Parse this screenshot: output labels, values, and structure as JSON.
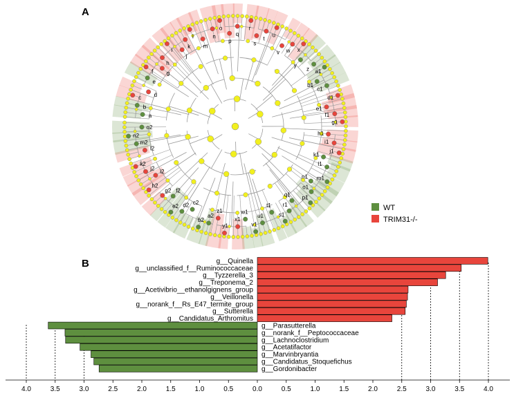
{
  "panels": {
    "a_label": "A",
    "b_label": "B"
  },
  "legend": {
    "items": [
      {
        "label": "WT",
        "color": "#5e8f3f"
      },
      {
        "label": "TRIM31-/-",
        "color": "#e8453c"
      }
    ]
  },
  "cladogram": {
    "node_color": "#f2f01e",
    "wt_color": "#5e8f3f",
    "ko_color": "#e8453c",
    "clade_labels": [
      {
        "text": "a",
        "group": "WT"
      },
      {
        "text": "b",
        "group": "WT"
      },
      {
        "text": "c",
        "group": "KO"
      },
      {
        "text": "d",
        "group": "KO"
      },
      {
        "text": "e",
        "group": "WT"
      },
      {
        "text": "f",
        "group": "KO"
      },
      {
        "text": "g",
        "group": "KO"
      },
      {
        "text": "h",
        "group": "KO"
      },
      {
        "text": "i",
        "group": "KO"
      },
      {
        "text": "j",
        "group": "KO"
      },
      {
        "text": "k",
        "group": "KO"
      },
      {
        "text": "l",
        "group": "KO"
      },
      {
        "text": "m",
        "group": "KO"
      },
      {
        "text": "n",
        "group": "KO"
      },
      {
        "text": "o",
        "group": "KO"
      },
      {
        "text": "p",
        "group": "KO"
      },
      {
        "text": "q",
        "group": "KO"
      },
      {
        "text": "r",
        "group": "KO"
      },
      {
        "text": "s",
        "group": "KO"
      },
      {
        "text": "t",
        "group": "KO"
      },
      {
        "text": "u",
        "group": "KO"
      },
      {
        "text": "v",
        "group": "KO"
      },
      {
        "text": "w",
        "group": "KO"
      },
      {
        "text": "x",
        "group": "KO"
      },
      {
        "text": "y",
        "group": "WT"
      },
      {
        "text": "z",
        "group": "WT"
      },
      {
        "text": "a1",
        "group": "WT"
      },
      {
        "text": "b1",
        "group": "WT"
      },
      {
        "text": "c1",
        "group": "WT"
      },
      {
        "text": "d1",
        "group": "KO"
      },
      {
        "text": "e1",
        "group": "KO"
      },
      {
        "text": "f1",
        "group": "KO"
      },
      {
        "text": "g1",
        "group": "KO"
      },
      {
        "text": "h1",
        "group": "KO"
      },
      {
        "text": "i1",
        "group": "KO"
      },
      {
        "text": "j1",
        "group": "KO"
      },
      {
        "text": "k1",
        "group": "WT"
      },
      {
        "text": "l1",
        "group": "WT"
      },
      {
        "text": "m1",
        "group": "WT"
      },
      {
        "text": "n1",
        "group": "WT"
      },
      {
        "text": "o1",
        "group": "WT"
      },
      {
        "text": "p1",
        "group": "WT"
      },
      {
        "text": "q1",
        "group": "WT"
      },
      {
        "text": "r1",
        "group": "WT"
      },
      {
        "text": "s1",
        "group": "WT"
      },
      {
        "text": "t1",
        "group": "WT"
      },
      {
        "text": "u1",
        "group": "WT"
      },
      {
        "text": "v1",
        "group": "WT"
      },
      {
        "text": "w1",
        "group": "WT"
      },
      {
        "text": "x1",
        "group": "KO"
      },
      {
        "text": "y1",
        "group": "KO"
      },
      {
        "text": "z1",
        "group": "KO"
      },
      {
        "text": "a2",
        "group": "WT"
      },
      {
        "text": "b2",
        "group": "WT"
      },
      {
        "text": "c2",
        "group": "WT"
      },
      {
        "text": "d2",
        "group": "WT"
      },
      {
        "text": "e2",
        "group": "WT"
      },
      {
        "text": "f2",
        "group": "WT"
      },
      {
        "text": "g2",
        "group": "KO"
      },
      {
        "text": "h2",
        "group": "KO"
      },
      {
        "text": "i2",
        "group": "KO"
      },
      {
        "text": "j2",
        "group": "KO"
      },
      {
        "text": "k2",
        "group": "KO"
      },
      {
        "text": "l2",
        "group": "KO"
      },
      {
        "text": "m2",
        "group": "WT"
      },
      {
        "text": "n2",
        "group": "WT"
      },
      {
        "text": "o2",
        "group": "WT"
      }
    ]
  },
  "chart_data": {
    "type": "bar",
    "title": "",
    "orientation": "horizontal",
    "xlabel": "",
    "ylabel": "",
    "xlim": [
      -4.0,
      4.0
    ],
    "x_ticks": [
      "4.0",
      "3.5",
      "3.0",
      "2.5",
      "2.0",
      "1.5",
      "1.0",
      "0.5",
      "0.0",
      "0.5",
      "1.0",
      "1.5",
      "2.0",
      "2.5",
      "3.0",
      "3.5",
      "4.0"
    ],
    "series": [
      {
        "name": "TRIM31-/-",
        "color": "#e8453c",
        "categories": [
          "g__Quinella",
          "g__unclassified_f__Ruminococcaceae",
          "g__Tyzzerella_3",
          "g__Treponema_2",
          "g__Acetivibrio__ethanolgignens_group",
          "g__Veillonella",
          "g__norank_f__Rs_E47_termite_group",
          "g__Sutterella",
          "g__Candidatus_Arthromitus"
        ],
        "values": [
          3.99,
          3.53,
          3.26,
          3.12,
          2.61,
          2.6,
          2.58,
          2.56,
          2.33
        ]
      },
      {
        "name": "WT",
        "color": "#5e8f3f",
        "categories": [
          "g__Parasutterella",
          "g__norank_f__Peptococcaceae",
          "g__Lachnoclostridium",
          "g__Acetatifactor",
          "g__Marvinbryantia",
          "g__Candidatus_Stoquefichus",
          "g__Gordonibacter"
        ],
        "values": [
          3.62,
          3.33,
          3.32,
          3.07,
          2.88,
          2.83,
          2.74
        ]
      }
    ],
    "reference_lines": [
      -4.0,
      -3.5,
      -3.0,
      2.5,
      3.0,
      3.5,
      4.0
    ]
  }
}
